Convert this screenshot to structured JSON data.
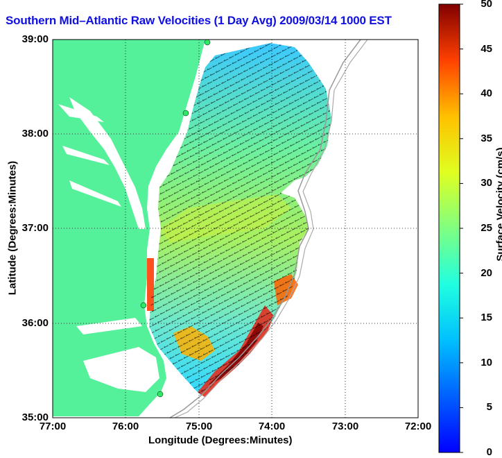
{
  "title": "Southern Mid–Atlantic Raw Velocities (1 Day Avg) 2009/03/14 1000 EST",
  "x_axis": {
    "label": "Longitude (Degrees:Minutes)",
    "ticks": [
      "77:00",
      "76:00",
      "75:00",
      "74:00",
      "73:00",
      "72:00"
    ]
  },
  "y_axis": {
    "label": "Latitude (Degrees:Minutes)",
    "ticks": [
      "39:00",
      "38:00",
      "37:00",
      "36:00",
      "35:00"
    ]
  },
  "colorbar": {
    "label": "Surface Velocity (cm/s)",
    "ticks": [
      "50",
      "45",
      "40",
      "35",
      "30",
      "25",
      "20",
      "15",
      "10",
      "5",
      "0"
    ],
    "range": [
      0,
      50
    ],
    "colormap": "jet"
  },
  "colors": {
    "land": "#55f09a",
    "title": "#1010e0",
    "station": "#2ee866"
  }
}
